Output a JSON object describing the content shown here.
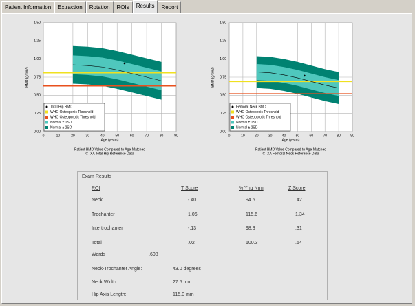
{
  "tabs": [
    "Patient Information",
    "Extraction",
    "Rotation",
    "ROIs",
    "Results",
    "Report"
  ],
  "active_tab": 4,
  "chart_data": [
    {
      "type": "line",
      "y_label": "BMD (g/cm2)",
      "x_label": "Age (years)",
      "caption": [
        "Patient BMD Value Compared to Age-Matched",
        "CTXA Total Hip Reference Data"
      ],
      "xlim": [
        0,
        90
      ],
      "xticks": [
        0,
        10,
        20,
        30,
        40,
        50,
        60,
        70,
        80,
        90
      ],
      "ylim": [
        0,
        1.5
      ],
      "yticks": [
        {
          "value": 0,
          "label": "0.00"
        },
        {
          "value": 0.25,
          "label": "0.25"
        },
        {
          "value": 0.5,
          "label": "0.50"
        },
        {
          "value": 0.75,
          "label": "0.75"
        },
        {
          "value": 1,
          "label": "1.00"
        },
        {
          "value": 1.25,
          "label": "1.25"
        },
        {
          "value": 1.5,
          "label": "1.50"
        }
      ],
      "grid": true,
      "x": [
        20,
        30,
        40,
        50,
        60,
        70,
        80
      ],
      "mean": {
        "color": "#000000",
        "values": [
          0.92,
          0.91,
          0.89,
          0.85,
          0.8,
          0.75,
          0.7
        ]
      },
      "bands": [
        {
          "name": "Normal ± 1SD",
          "color": "#4fc7bd",
          "upper": [
            1.05,
            1.04,
            1.02,
            0.98,
            0.93,
            0.88,
            0.83
          ],
          "lower": [
            0.79,
            0.78,
            0.76,
            0.72,
            0.67,
            0.62,
            0.57
          ]
        },
        {
          "name": "Normal ± 2SD",
          "color": "#008272",
          "upper": [
            1.18,
            1.17,
            1.15,
            1.11,
            1.06,
            1.01,
            0.96
          ],
          "lower": [
            0.66,
            0.65,
            0.63,
            0.59,
            0.54,
            0.49,
            0.44
          ]
        }
      ],
      "thresholds": [
        {
          "name": "WHO Osteopenic Threshold",
          "color": "#f0e020",
          "value": 0.81
        },
        {
          "name": "WHO Osteoporotic Threshold",
          "color": "#e8501e",
          "value": 0.63
        }
      ],
      "patient": {
        "name": "Total Hip BMD",
        "color": "#000000",
        "x": 55,
        "y": 0.94
      }
    },
    {
      "type": "line",
      "y_label": "BMD (g/cm2)",
      "x_label": "Age (years)",
      "caption": [
        "Patient BMD Value Compared to Age-Matched",
        "CTXA Femoral Neck Reference Data"
      ],
      "xlim": [
        0,
        90
      ],
      "xticks": [
        0,
        10,
        20,
        30,
        40,
        50,
        60,
        70,
        80,
        90
      ],
      "ylim": [
        0,
        1.5
      ],
      "yticks": [
        {
          "value": 0,
          "label": "0.00"
        },
        {
          "value": 0.25,
          "label": "0.25"
        },
        {
          "value": 0.5,
          "label": "0.50"
        },
        {
          "value": 0.75,
          "label": "0.75"
        },
        {
          "value": 1,
          "label": "1.00"
        },
        {
          "value": 1.25,
          "label": "1.25"
        },
        {
          "value": 1.5,
          "label": "1.50"
        }
      ],
      "grid": true,
      "x": [
        20,
        30,
        40,
        50,
        60,
        70,
        80
      ],
      "mean": {
        "color": "#000000",
        "values": [
          0.82,
          0.81,
          0.78,
          0.74,
          0.69,
          0.64,
          0.6
        ]
      },
      "bands": [
        {
          "name": "Normal ± 1SD",
          "color": "#4fc7bd",
          "upper": [
            0.93,
            0.92,
            0.89,
            0.85,
            0.8,
            0.75,
            0.71
          ],
          "lower": [
            0.71,
            0.7,
            0.67,
            0.63,
            0.58,
            0.53,
            0.49
          ]
        },
        {
          "name": "Normal ± 2SD",
          "color": "#008272",
          "upper": [
            1.04,
            1.03,
            1.0,
            0.96,
            0.91,
            0.86,
            0.82
          ],
          "lower": [
            0.6,
            0.59,
            0.56,
            0.52,
            0.47,
            0.42,
            0.38
          ]
        }
      ],
      "thresholds": [
        {
          "name": "WHO Osteopenic Threshold",
          "color": "#f0e020",
          "value": 0.69
        },
        {
          "name": "WHO Osteoporotic Threshold",
          "color": "#e8501e",
          "value": 0.52
        }
      ],
      "patient": {
        "name": "Femoral Neck BMD",
        "color": "#000000",
        "x": 55,
        "y": 0.77
      }
    }
  ],
  "exam_results": {
    "title": "Exam Results",
    "columns": [
      "ROI",
      "T Score",
      "% Yng Nrm",
      "Z Score"
    ],
    "rows": [
      [
        "Neck",
        "-.40",
        "94.5",
        ".42"
      ],
      [
        "Trochanter",
        "1.06",
        "115.6",
        "1.34"
      ],
      [
        "Intertrochanter",
        "-.13",
        "98.3",
        ".31"
      ],
      [
        "Total",
        ".02",
        "100.3",
        ".54"
      ]
    ],
    "wards": [
      "Wards",
      ".608"
    ],
    "measurements": [
      [
        "Neck-Trochanter Angle:",
        "43.0 degrees"
      ],
      [
        "Neck Width:",
        "27.5 mm"
      ],
      [
        "Hip Axis Length:",
        "115.0 mm"
      ]
    ]
  }
}
